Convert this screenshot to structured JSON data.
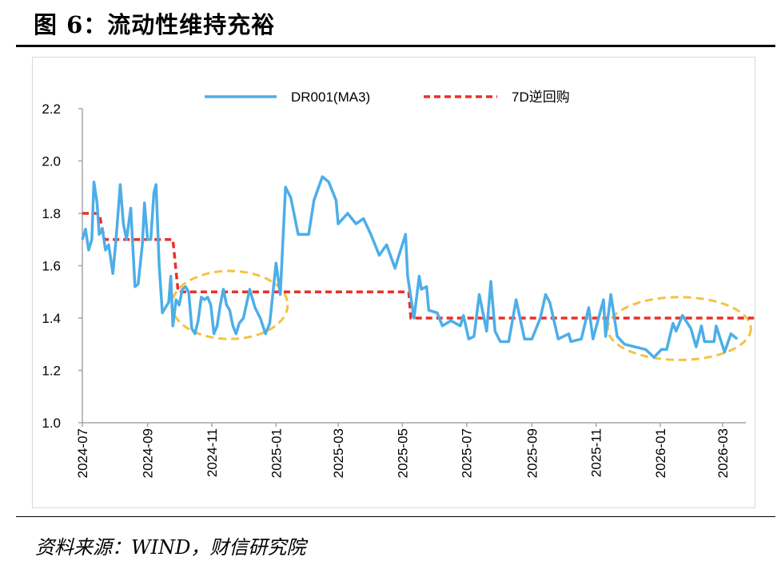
{
  "title": "图 6：流动性维持充裕",
  "source": "资料来源：WIND，财信研究院",
  "chart_data": {
    "type": "line",
    "title": "流动性维持充裕",
    "ylim": [
      1.0,
      2.2
    ],
    "yticks": [
      "1.0",
      "1.2",
      "1.4",
      "1.6",
      "1.8",
      "2.0",
      "2.2"
    ],
    "xlim": [
      "2024-07-01",
      "2026-03-31"
    ],
    "xticks": [
      "2024-07",
      "2024-09",
      "2024-11",
      "2025-01",
      "2025-03",
      "2025-05",
      "2025-07",
      "2025-09",
      "2025-11",
      "2026-01",
      "2026-03"
    ],
    "legend_position": "top",
    "colors": {
      "dr001": "#4daee8",
      "repo": "#e8312a",
      "highlight": "#f5c242"
    },
    "series": [
      {
        "name": "DR001(MA3)",
        "style": "solid",
        "points": [
          [
            "2024-07-01",
            1.7
          ],
          [
            "2024-07-04",
            1.74
          ],
          [
            "2024-07-07",
            1.66
          ],
          [
            "2024-07-10",
            1.7
          ],
          [
            "2024-07-12",
            1.92
          ],
          [
            "2024-07-15",
            1.84
          ],
          [
            "2024-07-17",
            1.72
          ],
          [
            "2024-07-20",
            1.74
          ],
          [
            "2024-07-23",
            1.66
          ],
          [
            "2024-07-26",
            1.68
          ],
          [
            "2024-07-30",
            1.57
          ],
          [
            "2024-08-02",
            1.7
          ],
          [
            "2024-08-06",
            1.91
          ],
          [
            "2024-08-09",
            1.76
          ],
          [
            "2024-08-12",
            1.7
          ],
          [
            "2024-08-16",
            1.82
          ],
          [
            "2024-08-20",
            1.52
          ],
          [
            "2024-08-23",
            1.53
          ],
          [
            "2024-08-27",
            1.68
          ],
          [
            "2024-08-29",
            1.84
          ],
          [
            "2024-09-01",
            1.7
          ],
          [
            "2024-09-04",
            1.7
          ],
          [
            "2024-09-07",
            1.88
          ],
          [
            "2024-09-09",
            1.91
          ],
          [
            "2024-09-12",
            1.6
          ],
          [
            "2024-09-15",
            1.42
          ],
          [
            "2024-09-18",
            1.44
          ],
          [
            "2024-09-21",
            1.46
          ],
          [
            "2024-09-23",
            1.56
          ],
          [
            "2024-09-25",
            1.37
          ],
          [
            "2024-09-28",
            1.47
          ],
          [
            "2024-10-01",
            1.45
          ],
          [
            "2024-10-04",
            1.51
          ],
          [
            "2024-10-07",
            1.52
          ],
          [
            "2024-10-10",
            1.5
          ],
          [
            "2024-10-13",
            1.36
          ],
          [
            "2024-10-16",
            1.34
          ],
          [
            "2024-10-19",
            1.39
          ],
          [
            "2024-10-22",
            1.48
          ],
          [
            "2024-10-25",
            1.47
          ],
          [
            "2024-10-28",
            1.48
          ],
          [
            "2024-10-31",
            1.45
          ],
          [
            "2024-11-03",
            1.34
          ],
          [
            "2024-11-06",
            1.37
          ],
          [
            "2024-11-09",
            1.45
          ],
          [
            "2024-11-12",
            1.51
          ],
          [
            "2024-11-15",
            1.45
          ],
          [
            "2024-11-18",
            1.43
          ],
          [
            "2024-11-21",
            1.37
          ],
          [
            "2024-11-24",
            1.34
          ],
          [
            "2024-11-27",
            1.38
          ],
          [
            "2024-12-01",
            1.4
          ],
          [
            "2024-12-07",
            1.51
          ],
          [
            "2024-12-12",
            1.44
          ],
          [
            "2024-12-17",
            1.4
          ],
          [
            "2024-12-22",
            1.34
          ],
          [
            "2024-12-26",
            1.38
          ],
          [
            "2025-01-01",
            1.61
          ],
          [
            "2025-01-05",
            1.49
          ],
          [
            "2025-01-10",
            1.9
          ],
          [
            "2025-01-15",
            1.86
          ],
          [
            "2025-01-22",
            1.72
          ],
          [
            "2025-02-01",
            1.72
          ],
          [
            "2025-02-06",
            1.85
          ],
          [
            "2025-02-14",
            1.94
          ],
          [
            "2025-02-20",
            1.92
          ],
          [
            "2025-02-27",
            1.85
          ],
          [
            "2025-03-01",
            1.76
          ],
          [
            "2025-03-10",
            1.8
          ],
          [
            "2025-03-18",
            1.76
          ],
          [
            "2025-03-25",
            1.78
          ],
          [
            "2025-04-01",
            1.72
          ],
          [
            "2025-04-09",
            1.64
          ],
          [
            "2025-04-16",
            1.68
          ],
          [
            "2025-04-24",
            1.59
          ],
          [
            "2025-04-27",
            1.63
          ],
          [
            "2025-05-04",
            1.72
          ],
          [
            "2025-05-06",
            1.56
          ],
          [
            "2025-05-12",
            1.4
          ],
          [
            "2025-05-17",
            1.56
          ],
          [
            "2025-05-19",
            1.51
          ],
          [
            "2025-05-24",
            1.52
          ],
          [
            "2025-05-26",
            1.43
          ],
          [
            "2025-06-03",
            1.42
          ],
          [
            "2025-06-08",
            1.37
          ],
          [
            "2025-06-16",
            1.39
          ],
          [
            "2025-06-25",
            1.37
          ],
          [
            "2025-06-28",
            1.41
          ],
          [
            "2025-07-03",
            1.32
          ],
          [
            "2025-07-08",
            1.33
          ],
          [
            "2025-07-13",
            1.49
          ],
          [
            "2025-07-20",
            1.35
          ],
          [
            "2025-07-24",
            1.54
          ],
          [
            "2025-07-28",
            1.35
          ],
          [
            "2025-08-02",
            1.31
          ],
          [
            "2025-08-10",
            1.31
          ],
          [
            "2025-08-17",
            1.47
          ],
          [
            "2025-08-25",
            1.32
          ],
          [
            "2025-09-01",
            1.32
          ],
          [
            "2025-09-09",
            1.4
          ],
          [
            "2025-09-14",
            1.49
          ],
          [
            "2025-09-18",
            1.46
          ],
          [
            "2025-09-26",
            1.32
          ],
          [
            "2025-10-06",
            1.34
          ],
          [
            "2025-10-08",
            1.31
          ],
          [
            "2025-10-18",
            1.32
          ],
          [
            "2025-10-25",
            1.44
          ],
          [
            "2025-10-29",
            1.32
          ],
          [
            "2025-11-08",
            1.47
          ],
          [
            "2025-11-10",
            1.33
          ],
          [
            "2025-11-15",
            1.49
          ],
          [
            "2025-11-21",
            1.33
          ],
          [
            "2025-11-28",
            1.3
          ],
          [
            "2025-12-08",
            1.29
          ],
          [
            "2025-12-18",
            1.28
          ],
          [
            "2025-12-26",
            1.25
          ],
          [
            "2026-01-02",
            1.28
          ],
          [
            "2026-01-07",
            1.28
          ],
          [
            "2026-01-13",
            1.38
          ],
          [
            "2026-01-16",
            1.35
          ],
          [
            "2026-01-22",
            1.41
          ],
          [
            "2026-01-30",
            1.36
          ],
          [
            "2026-02-04",
            1.29
          ],
          [
            "2026-02-09",
            1.37
          ],
          [
            "2026-02-12",
            1.31
          ],
          [
            "2026-02-21",
            1.31
          ],
          [
            "2026-02-23",
            1.37
          ],
          [
            "2026-03-03",
            1.27
          ],
          [
            "2026-03-09",
            1.34
          ],
          [
            "2026-03-15",
            1.32
          ]
        ]
      },
      {
        "name": "7D逆回购",
        "style": "dashed",
        "points": [
          [
            "2024-07-01",
            1.8
          ],
          [
            "2024-07-17",
            1.8
          ],
          [
            "2024-07-22",
            1.7
          ],
          [
            "2024-09-25",
            1.7
          ],
          [
            "2024-09-30",
            1.5
          ],
          [
            "2025-05-07",
            1.5
          ],
          [
            "2025-05-09",
            1.4
          ],
          [
            "2026-03-31",
            1.4
          ]
        ]
      }
    ],
    "annotations": [
      {
        "type": "ellipse",
        "from": "2024-09-24",
        "to": "2025-01-12",
        "ylim": [
          1.32,
          1.58
        ]
      },
      {
        "type": "ellipse",
        "from": "2025-11-12",
        "to": "2026-03-28",
        "ylim": [
          1.24,
          1.48
        ]
      }
    ]
  }
}
